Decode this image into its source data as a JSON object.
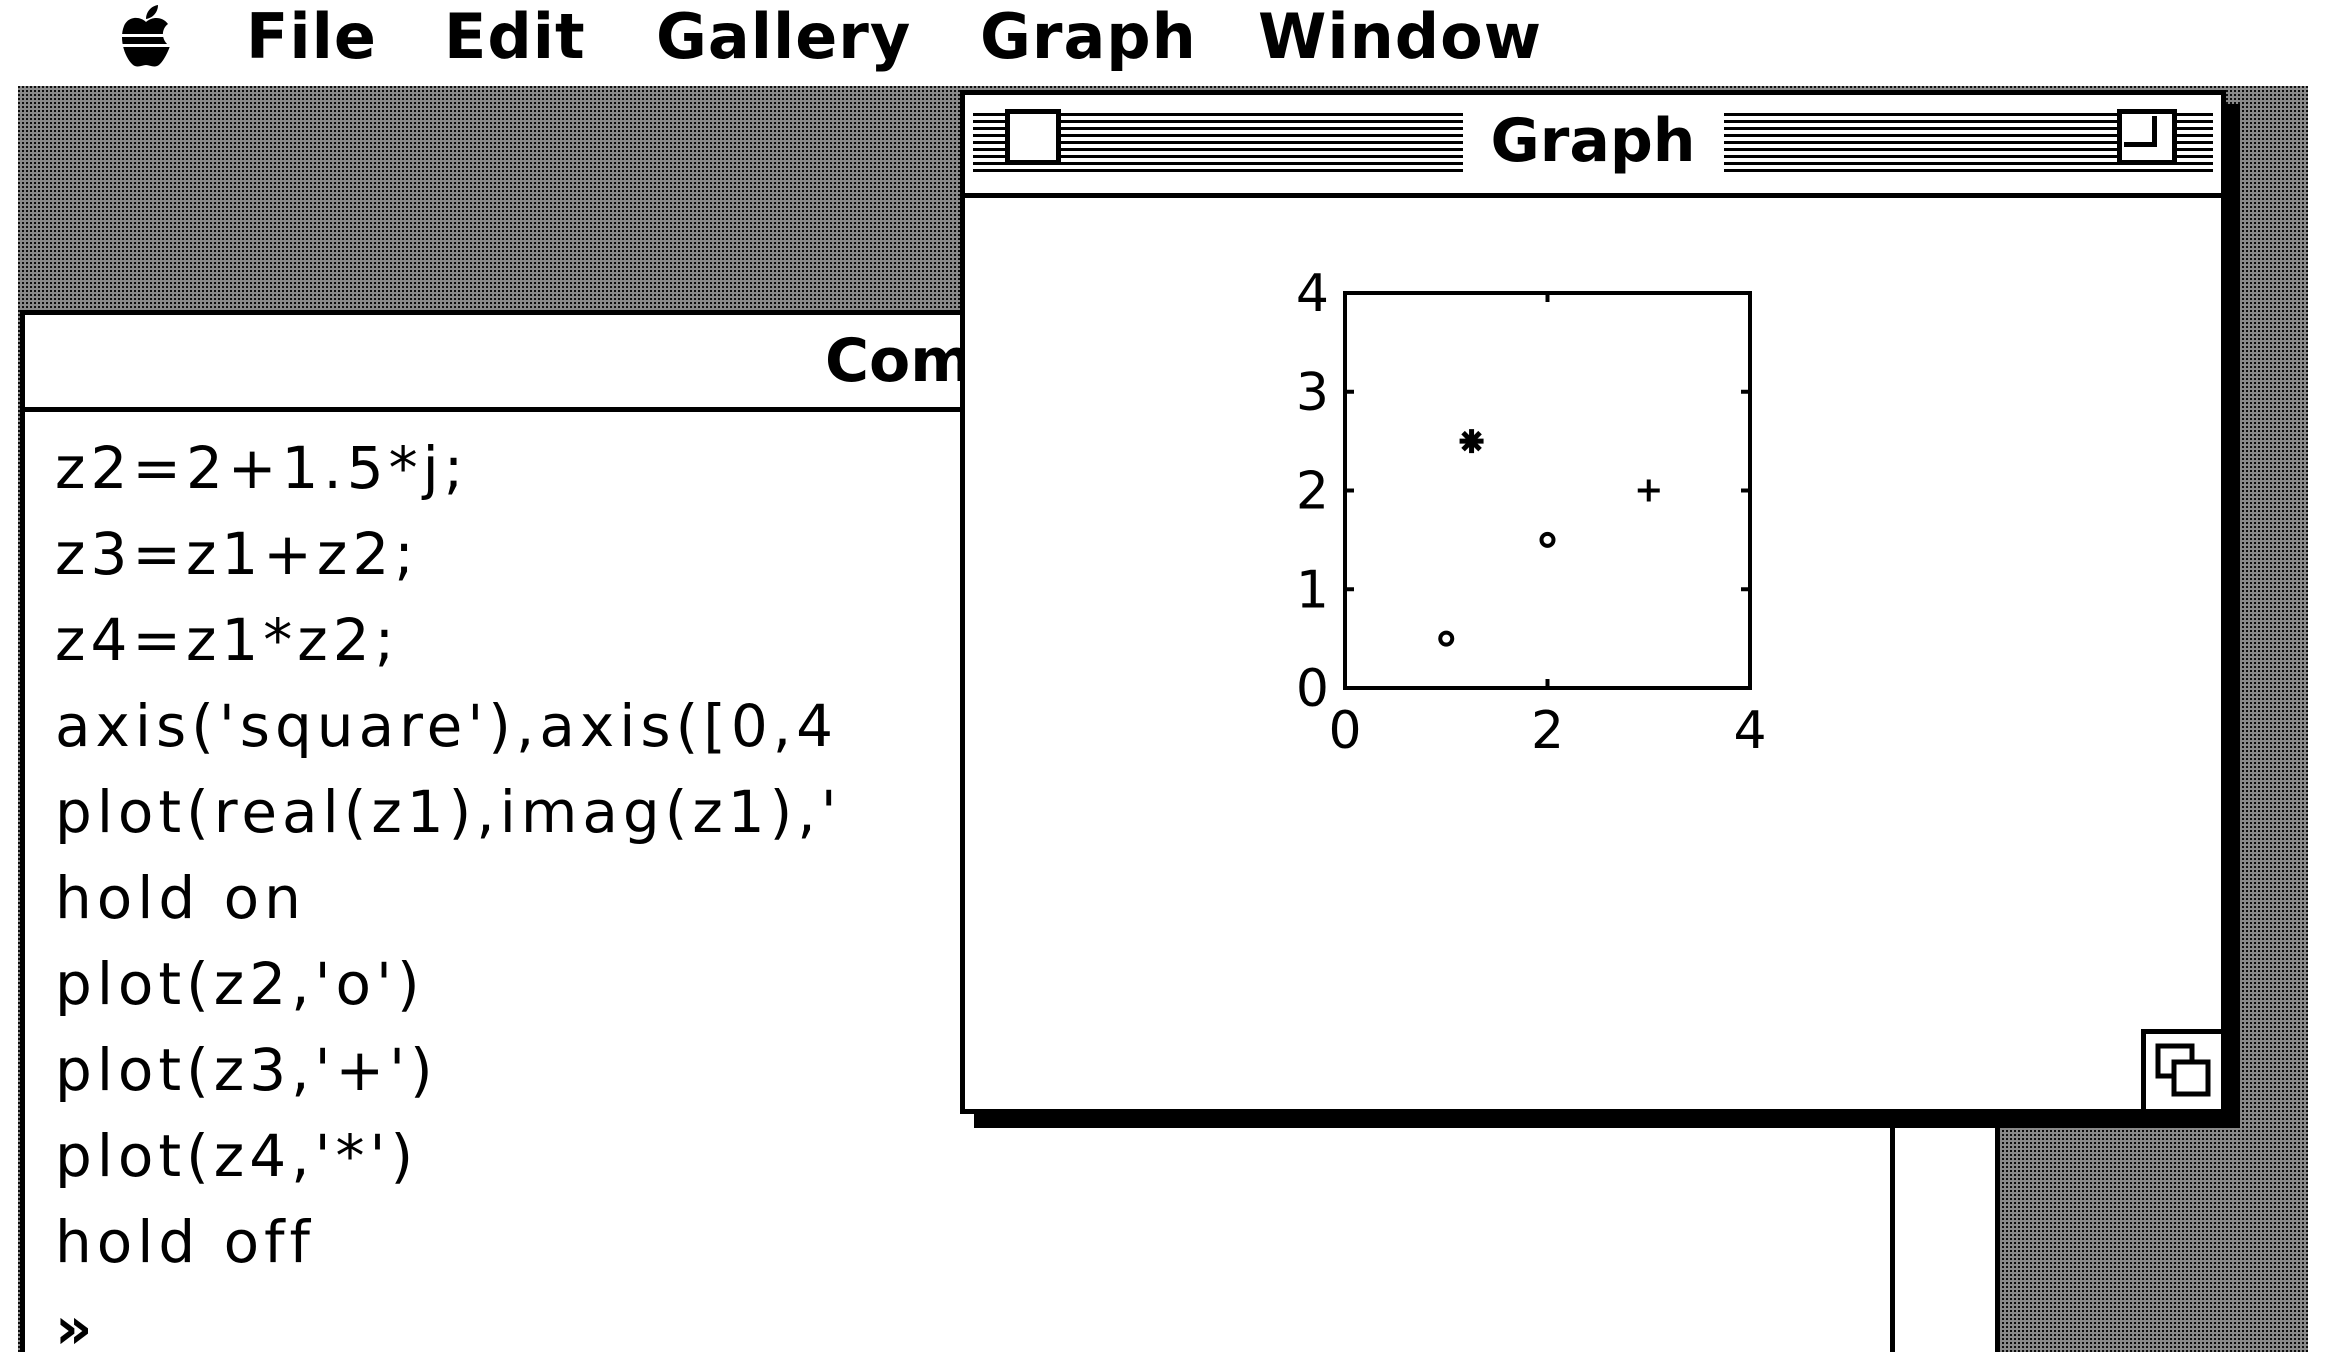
{
  "menubar": {
    "apple_icon": "apple-icon",
    "items": [
      "File",
      "Edit",
      "Gallery",
      "Graph",
      "Window"
    ]
  },
  "command_window": {
    "title": "Com",
    "lines": [
      "z2=2+1.5*j;",
      "z3=z1+z2;",
      "z4=z1*z2;",
      "axis('square'),axis([0,4",
      "plot(real(z1),imag(z1),'",
      "hold on",
      "plot(z2,'o')",
      "plot(z3,'+')",
      "plot(z4,'*')",
      "hold off"
    ],
    "prompt": "»"
  },
  "graph_window": {
    "title": "Graph",
    "close_icon": "close-box-icon",
    "zoom_icon": "zoom-box-icon",
    "grow_icon": "grow-box-icon"
  },
  "chart_data": {
    "type": "scatter",
    "title": "",
    "xlabel": "",
    "ylabel": "",
    "xlim": [
      0,
      4
    ],
    "ylim": [
      0,
      4
    ],
    "xticks": [
      0,
      2,
      4
    ],
    "yticks": [
      0,
      1,
      2,
      3,
      4
    ],
    "grid": false,
    "points": [
      {
        "x": 1.0,
        "y": 0.5,
        "marker": "o"
      },
      {
        "x": 2.0,
        "y": 1.5,
        "marker": "o"
      },
      {
        "x": 3.0,
        "y": 2.0,
        "marker": "+"
      },
      {
        "x": 1.25,
        "y": 2.5,
        "marker": "*"
      }
    ]
  },
  "colors": {
    "foreground": "#000000",
    "background": "#ffffff",
    "desktop_pattern": "#8a8a8a"
  }
}
